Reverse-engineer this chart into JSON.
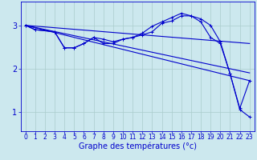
{
  "bg_color": "#cce8ee",
  "grid_color": "#aacccc",
  "line_color": "#0000cc",
  "xlabel": "Graphe des températures (°c)",
  "xlabel_fontsize": 7,
  "tick_fontsize": 5.5,
  "yticks": [
    1,
    2,
    3
  ],
  "xlim": [
    -0.5,
    23.5
  ],
  "ylim": [
    0.55,
    3.55
  ],
  "line1_x": [
    0,
    1,
    3,
    4,
    5,
    6,
    7,
    8,
    9,
    10,
    11,
    12,
    13,
    14,
    15,
    16,
    17,
    18,
    19,
    20,
    21,
    22,
    23
  ],
  "line1_y": [
    3.0,
    2.9,
    2.85,
    2.48,
    2.48,
    2.58,
    2.72,
    2.68,
    2.62,
    2.68,
    2.72,
    2.78,
    2.85,
    3.05,
    3.1,
    3.22,
    3.22,
    3.15,
    3.0,
    2.62,
    1.88,
    1.05,
    0.88
  ],
  "line2_x": [
    0,
    1,
    3,
    4,
    5,
    6,
    7,
    8,
    9,
    10,
    11,
    12,
    13,
    14,
    15,
    16,
    17,
    18,
    19,
    20,
    21,
    22,
    23
  ],
  "line2_y": [
    3.0,
    2.9,
    2.85,
    2.48,
    2.48,
    2.58,
    2.72,
    2.58,
    2.58,
    2.68,
    2.72,
    2.82,
    2.98,
    3.08,
    3.18,
    3.28,
    3.22,
    3.08,
    2.72,
    2.58,
    1.88,
    1.08,
    1.72
  ],
  "line3_x": [
    0,
    23
  ],
  "line3_y": [
    3.0,
    2.58
  ],
  "line4_x": [
    0,
    23
  ],
  "line4_y": [
    3.0,
    1.9
  ],
  "line5_x": [
    0,
    23
  ],
  "line5_y": [
    3.0,
    1.72
  ],
  "xtick_labels": [
    "0",
    "1",
    "2",
    "3",
    "4",
    "5",
    "6",
    "7",
    "8",
    "9",
    "10",
    "11",
    "12",
    "13",
    "14",
    "15",
    "16",
    "17",
    "18",
    "19",
    "20",
    "21",
    "22",
    "23"
  ]
}
